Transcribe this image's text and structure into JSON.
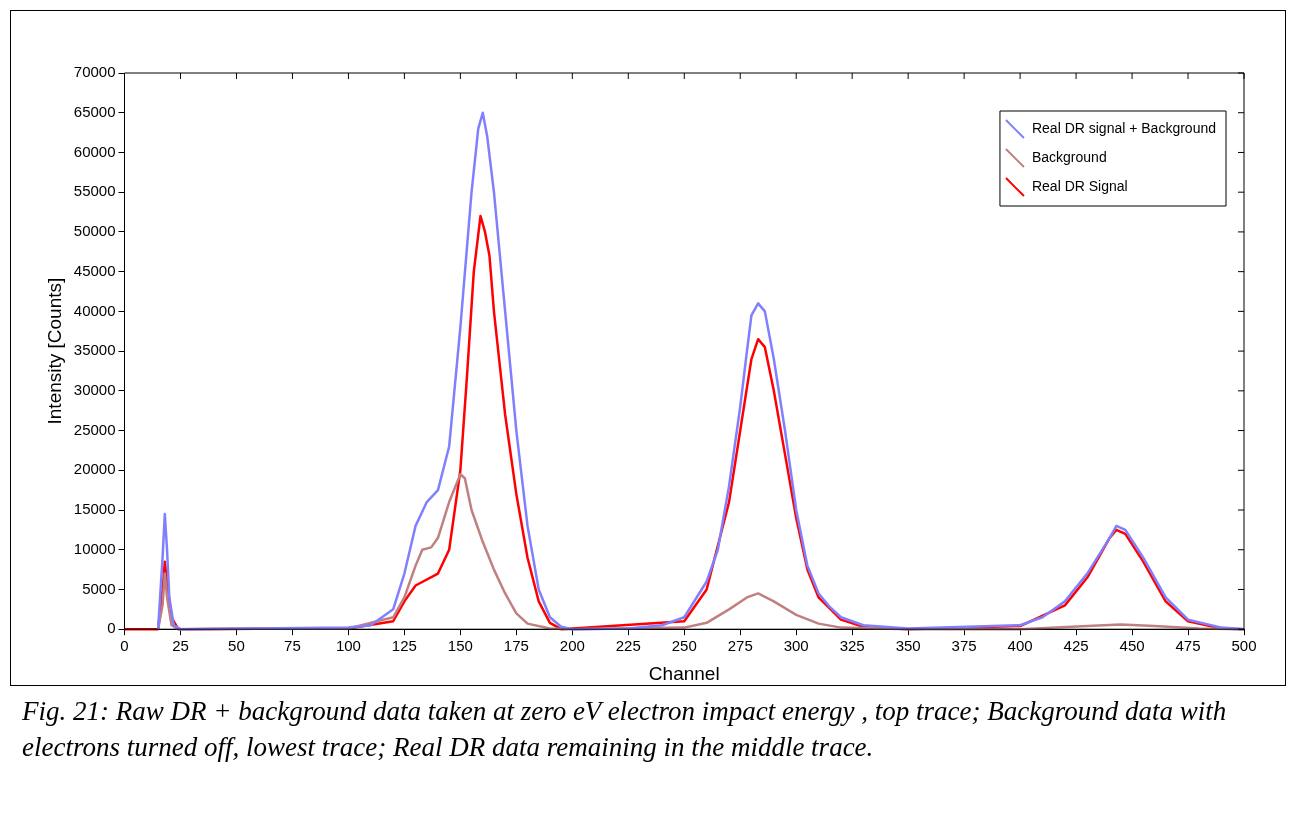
{
  "chart_data": {
    "type": "line",
    "xlabel": "Channel",
    "ylabel": "Intensity [Counts]",
    "xlim": [
      0,
      500
    ],
    "xticks": [
      0,
      25,
      50,
      75,
      100,
      125,
      150,
      175,
      200,
      225,
      250,
      275,
      300,
      325,
      350,
      375,
      400,
      425,
      450,
      475,
      500
    ],
    "ylim": [
      0,
      70000
    ],
    "yticks": [
      0,
      5000,
      10000,
      15000,
      20000,
      25000,
      30000,
      35000,
      40000,
      45000,
      50000,
      55000,
      60000,
      65000,
      70000
    ],
    "grid": false,
    "legend": "top right",
    "marker": "none",
    "line_style": "solid",
    "series": [
      {
        "name": "Real DR signal + Background",
        "color": "#8080ff",
        "x": [
          15,
          17,
          18,
          19,
          20,
          22,
          25,
          100,
          110,
          120,
          125,
          130,
          135,
          140,
          145,
          150,
          155,
          158,
          160,
          162,
          165,
          170,
          175,
          180,
          185,
          190,
          195,
          200,
          225,
          240,
          250,
          260,
          265,
          270,
          275,
          278,
          280,
          283,
          286,
          290,
          295,
          300,
          305,
          310,
          315,
          320,
          330,
          350,
          400,
          410,
          420,
          430,
          440,
          443,
          447,
          455,
          465,
          475,
          490,
          500
        ],
        "values": [
          0,
          9000,
          14500,
          10000,
          4000,
          500,
          0,
          200,
          500,
          2500,
          7000,
          13000,
          16000,
          17500,
          23000,
          38000,
          55000,
          63000,
          65000,
          62000,
          55000,
          40000,
          25000,
          13000,
          5000,
          1500,
          300,
          0,
          100,
          500,
          1500,
          6000,
          10000,
          18000,
          28000,
          35000,
          39500,
          41000,
          40000,
          34000,
          25000,
          15000,
          8000,
          4500,
          2800,
          1500,
          500,
          100,
          500,
          1500,
          3500,
          7000,
          11500,
          13000,
          12500,
          9000,
          4000,
          1200,
          200,
          0
        ]
      },
      {
        "name": "Background",
        "color": "#c08080",
        "x": [
          15,
          17,
          18,
          19,
          21,
          24,
          100,
          120,
          125,
          130,
          133,
          137,
          140,
          145,
          150,
          152,
          155,
          160,
          165,
          170,
          175,
          180,
          190,
          200,
          250,
          260,
          270,
          278,
          283,
          290,
          300,
          310,
          320,
          350,
          400,
          430,
          445,
          460,
          480,
          500
        ],
        "values": [
          0,
          3000,
          7000,
          4000,
          500,
          0,
          100,
          1500,
          4000,
          8000,
          10000,
          10300,
          11500,
          16000,
          19500,
          19000,
          15000,
          11000,
          7500,
          4500,
          2000,
          700,
          100,
          0,
          200,
          800,
          2500,
          4000,
          4500,
          3500,
          1800,
          700,
          200,
          0,
          0,
          400,
          600,
          400,
          100,
          0
        ]
      },
      {
        "name": "Real DR Signal",
        "color": "#ff0000",
        "x": [
          0,
          15,
          17,
          18,
          19,
          21,
          24,
          100,
          120,
          125,
          130,
          140,
          145,
          150,
          153,
          156,
          159,
          161,
          163,
          165,
          170,
          175,
          180,
          185,
          190,
          195,
          250,
          260,
          270,
          275,
          280,
          283,
          286,
          290,
          295,
          300,
          305,
          310,
          320,
          330,
          350,
          400,
          420,
          430,
          440,
          443,
          447,
          455,
          465,
          475,
          490,
          500
        ],
        "values": [
          0,
          0,
          5000,
          8500,
          6000,
          1500,
          0,
          100,
          1000,
          3500,
          5500,
          7000,
          10000,
          20000,
          32000,
          45000,
          52000,
          50000,
          47000,
          40000,
          27000,
          17000,
          9000,
          3500,
          800,
          0,
          1000,
          5000,
          16000,
          25000,
          34000,
          36500,
          35500,
          30000,
          22000,
          14000,
          7500,
          4000,
          1200,
          300,
          0,
          400,
          3000,
          6500,
          11500,
          12500,
          12000,
          8500,
          3500,
          1000,
          100,
          0
        ]
      }
    ],
    "annotations": [
      "Fig. 21: Raw DR + background data taken at zero eV electron impact energy , top trace; Background data with electrons turned off, lowest trace; Real DR data remaining in the middle trace."
    ]
  }
}
